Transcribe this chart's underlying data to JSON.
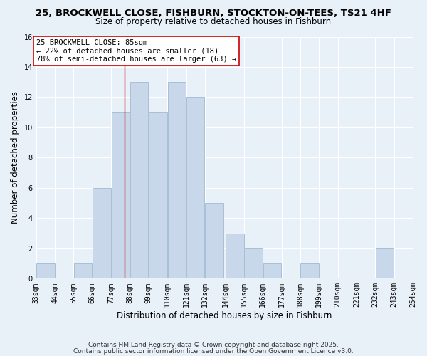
{
  "title1": "25, BROCKWELL CLOSE, FISHBURN, STOCKTON-ON-TEES, TS21 4HF",
  "title2": "Size of property relative to detached houses in Fishburn",
  "xlabel": "Distribution of detached houses by size in Fishburn",
  "ylabel": "Number of detached properties",
  "bin_edges": [
    33,
    44,
    55,
    66,
    77,
    88,
    99,
    110,
    121,
    132,
    144,
    155,
    166,
    177,
    188,
    199,
    210,
    221,
    232,
    243,
    254
  ],
  "counts": [
    1,
    0,
    1,
    6,
    11,
    13,
    11,
    13,
    12,
    5,
    3,
    2,
    1,
    0,
    1,
    0,
    0,
    0,
    2,
    0
  ],
  "bar_color": "#c8d8ea",
  "bar_edgecolor": "#a8c0d6",
  "property_value": 85,
  "marker_line_color": "#cc0000",
  "annotation_line1": "25 BROCKWELL CLOSE: 85sqm",
  "annotation_line2": "← 22% of detached houses are smaller (18)",
  "annotation_line3": "78% of semi-detached houses are larger (63) →",
  "annotation_box_edgecolor": "#cc0000",
  "annotation_box_facecolor": "#ffffff",
  "ylim": [
    0,
    16
  ],
  "yticks": [
    0,
    2,
    4,
    6,
    8,
    10,
    12,
    14,
    16
  ],
  "tick_labels": [
    "33sqm",
    "44sqm",
    "55sqm",
    "66sqm",
    "77sqm",
    "88sqm",
    "99sqm",
    "110sqm",
    "121sqm",
    "132sqm",
    "144sqm",
    "155sqm",
    "166sqm",
    "177sqm",
    "188sqm",
    "199sqm",
    "210sqm",
    "221sqm",
    "232sqm",
    "243sqm",
    "254sqm"
  ],
  "footer1": "Contains HM Land Registry data © Crown copyright and database right 2025.",
  "footer2": "Contains public sector information licensed under the Open Government Licence v3.0.",
  "background_color": "#e8f0f8",
  "plot_bg_color": "#e8f0f8",
  "grid_color": "#ffffff",
  "title_fontsize": 9.5,
  "subtitle_fontsize": 8.5,
  "axis_label_fontsize": 8.5,
  "tick_fontsize": 7,
  "annotation_fontsize": 7.5,
  "footer_fontsize": 6.5
}
